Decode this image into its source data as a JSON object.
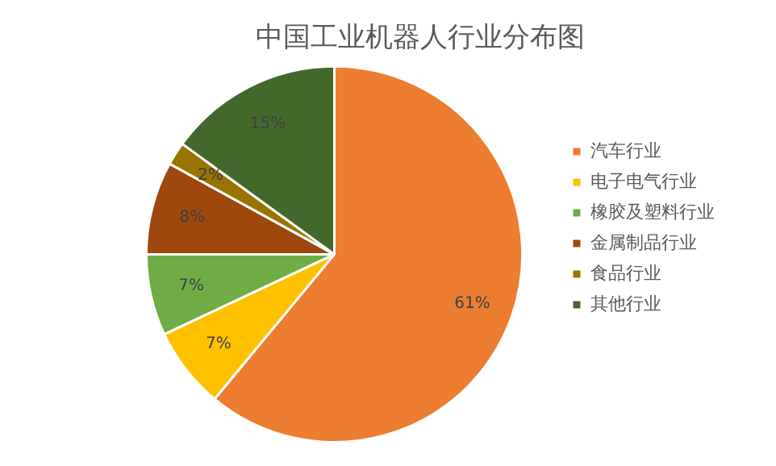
{
  "chart_data": {
    "type": "pie",
    "title": "中国工业机器人行业分布图",
    "categories": [
      "汽车行业",
      "电子电气行业",
      "橡胶及塑料行业",
      "金属制品行业",
      "食品行业",
      "其他行业"
    ],
    "values": [
      61,
      7,
      7,
      8,
      2,
      15
    ],
    "value_labels": [
      "61%",
      "7%",
      "7%",
      "8%",
      "2%",
      "15%"
    ],
    "colors": [
      "#ed7d31",
      "#ffc000",
      "#70ad47",
      "#9e480e",
      "#997300",
      "#43682b"
    ],
    "legend": "right"
  }
}
